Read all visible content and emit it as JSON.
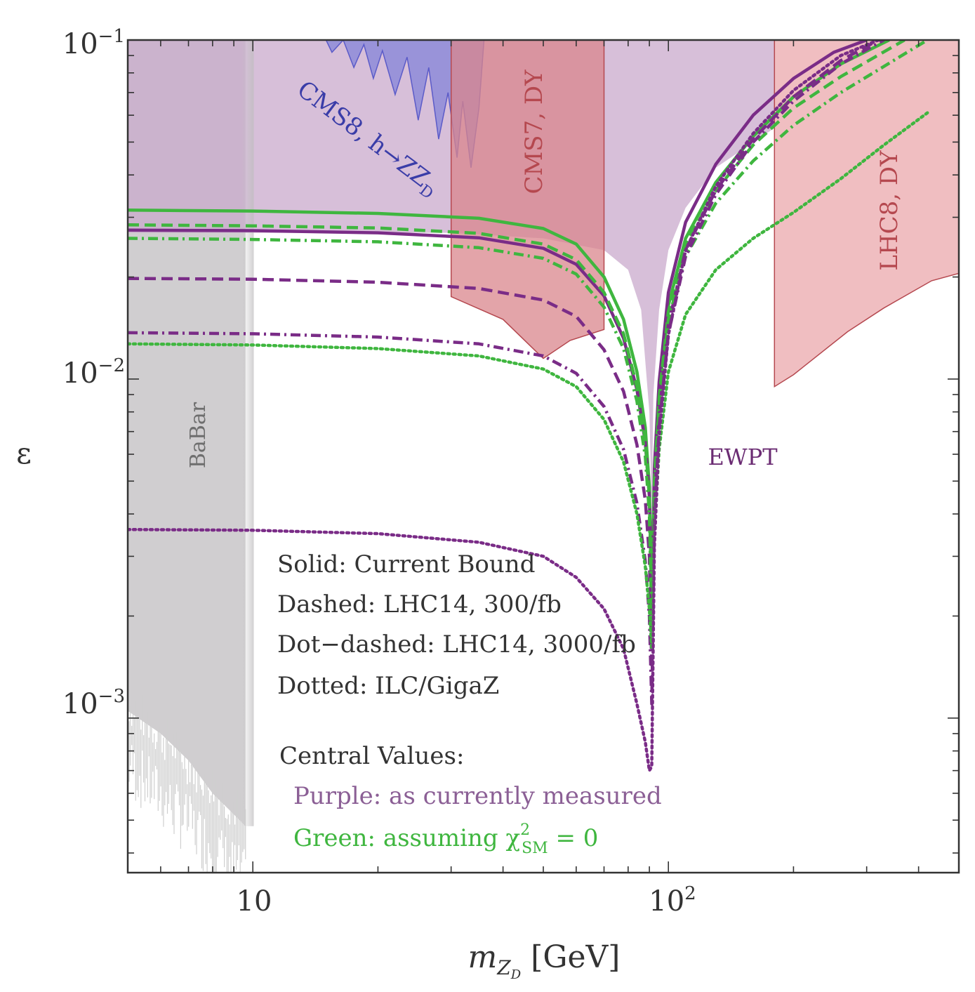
{
  "chart_data": {
    "type": "line",
    "title": "",
    "xlabel_main": "m",
    "xlabel_sub": "Z",
    "xlabel_subsub": "D",
    "xlabel_unit": "[GeV]",
    "ylabel": "ε",
    "xscale": "log",
    "yscale": "log",
    "xlim": [
      5.0,
      500.0
    ],
    "ylim": [
      0.00035,
      0.1
    ],
    "x_ticks": [
      {
        "value": 10,
        "label": "10",
        "sup": ""
      },
      {
        "value": 100,
        "label": "10",
        "sup": "2"
      }
    ],
    "y_ticks": [
      {
        "value": 0.1,
        "label": "10",
        "sup": "−1"
      },
      {
        "value": 0.01,
        "label": "10",
        "sup": "−2"
      },
      {
        "value": 0.001,
        "label": "10",
        "sup": "−3"
      }
    ],
    "regions": [
      {
        "name": "BaBar",
        "label": "BaBar",
        "color": "#c8c6c8",
        "points": [
          [
            5,
            0.1
          ],
          [
            9.6,
            0.1
          ],
          [
            9.6,
            0.00048
          ],
          [
            9.0,
            0.00052
          ],
          [
            8.0,
            0.0006
          ],
          [
            7.0,
            0.00075
          ],
          [
            6.0,
            0.0009
          ],
          [
            5.0,
            0.00105
          ]
        ]
      },
      {
        "name": "EWPT",
        "label": "EWPT",
        "color": "#c9a9cc",
        "points": [
          [
            5,
            0.1
          ],
          [
            180,
            0.1
          ],
          [
            180,
            0.055
          ],
          [
            130,
            0.042
          ],
          [
            110,
            0.032
          ],
          [
            100,
            0.024
          ],
          [
            95,
            0.016
          ],
          [
            92,
            0.009
          ],
          [
            91.2,
            0.004
          ],
          [
            90,
            0.008
          ],
          [
            86,
            0.016
          ],
          [
            80,
            0.021
          ],
          [
            70,
            0.024
          ],
          [
            50,
            0.026
          ],
          [
            30,
            0.027
          ],
          [
            20,
            0.027
          ],
          [
            5,
            0.027
          ]
        ]
      },
      {
        "name": "CMS8, h→ZZ_D",
        "label": "CMS8, h→ZZ",
        "label_sub": "D",
        "color": "#8a88d8",
        "points": [
          [
            15,
            0.1
          ],
          [
            15.5,
            0.092
          ],
          [
            16.5,
            0.1
          ],
          [
            17.5,
            0.083
          ],
          [
            18.5,
            0.097
          ],
          [
            19.5,
            0.077
          ],
          [
            20.5,
            0.093
          ],
          [
            22,
            0.069
          ],
          [
            23.5,
            0.089
          ],
          [
            25,
            0.058
          ],
          [
            26.5,
            0.083
          ],
          [
            28,
            0.051
          ],
          [
            29.5,
            0.07
          ],
          [
            31,
            0.045
          ],
          [
            32,
            0.066
          ],
          [
            33.5,
            0.042
          ],
          [
            35,
            0.063
          ],
          [
            36,
            0.1
          ]
        ]
      },
      {
        "name": "CMS7, DY",
        "label": "CMS7, DY",
        "color": "#d9868c",
        "points": [
          [
            30,
            0.1
          ],
          [
            70,
            0.1
          ],
          [
            70,
            0.014
          ],
          [
            58,
            0.013
          ],
          [
            50,
            0.0115
          ],
          [
            40,
            0.015
          ],
          [
            30,
            0.0175
          ]
        ]
      },
      {
        "name": "LHC8, DY",
        "label": "LHC8, DY",
        "color": "#e9a3a6",
        "points": [
          [
            180,
            0.1
          ],
          [
            500,
            0.1
          ],
          [
            500,
            0.0205
          ],
          [
            430,
            0.0195
          ],
          [
            330,
            0.0162
          ],
          [
            270,
            0.0138
          ],
          [
            200,
            0.0103
          ],
          [
            180,
            0.0095
          ]
        ]
      }
    ],
    "series": [
      {
        "name": "Solid: Current Bound (green)",
        "color": "#3fb63f",
        "style": "solid",
        "x": [
          5,
          10,
          20,
          35,
          50,
          60,
          70,
          78,
          84,
          88,
          90,
          91.2,
          92.5,
          95,
          100,
          110,
          130,
          160,
          200,
          260,
          340
        ],
        "y": [
          0.0315,
          0.0313,
          0.0308,
          0.0298,
          0.0278,
          0.025,
          0.02,
          0.015,
          0.0105,
          0.0072,
          0.0048,
          0.0021,
          0.0052,
          0.0092,
          0.0165,
          0.026,
          0.038,
          0.052,
          0.068,
          0.085,
          0.1
        ]
      },
      {
        "name": "Solid: Current Bound (purple)",
        "color": "#7a2c87",
        "style": "solid",
        "x": [
          5,
          10,
          20,
          35,
          50,
          60,
          70,
          78,
          84,
          88,
          90,
          91.2,
          92.5,
          95,
          100,
          110,
          130,
          160,
          200,
          250,
          300
        ],
        "y": [
          0.0275,
          0.0274,
          0.027,
          0.0261,
          0.0243,
          0.0218,
          0.0176,
          0.0132,
          0.0093,
          0.0065,
          0.0045,
          0.0022,
          0.0055,
          0.0098,
          0.018,
          0.029,
          0.043,
          0.06,
          0.077,
          0.092,
          0.1
        ]
      },
      {
        "name": "Dashed: LHC14, 300/fb (green)",
        "color": "#3fb63f",
        "style": "dashed",
        "x": [
          5,
          10,
          20,
          35,
          50,
          60,
          70,
          78,
          84,
          88,
          90,
          91.2,
          92.5,
          95,
          100,
          110,
          130,
          160,
          200,
          260,
          370
        ],
        "y": [
          0.0285,
          0.0283,
          0.0279,
          0.0269,
          0.025,
          0.0225,
          0.018,
          0.0136,
          0.0095,
          0.0066,
          0.0045,
          0.0021,
          0.005,
          0.0088,
          0.0158,
          0.025,
          0.036,
          0.049,
          0.063,
          0.078,
          0.1
        ]
      },
      {
        "name": "Dashed: LHC14, 300/fb (purple)",
        "color": "#7a2c87",
        "style": "dashed",
        "x": [
          5,
          10,
          20,
          35,
          50,
          60,
          70,
          78,
          84,
          88,
          90,
          91.2,
          92.5,
          95,
          100,
          110,
          130,
          160,
          200,
          260,
          320
        ],
        "y": [
          0.0198,
          0.0197,
          0.0193,
          0.0185,
          0.0171,
          0.0153,
          0.0122,
          0.0092,
          0.0064,
          0.0044,
          0.003,
          0.0014,
          0.0042,
          0.0078,
          0.0145,
          0.024,
          0.036,
          0.051,
          0.068,
          0.087,
          0.1
        ]
      },
      {
        "name": "Dot-dashed: LHC14, 3000/fb (green)",
        "color": "#3fb63f",
        "style": "dotdash",
        "x": [
          5,
          10,
          20,
          35,
          50,
          60,
          70,
          78,
          84,
          88,
          90,
          91.2,
          92.5,
          95,
          100,
          110,
          130,
          160,
          200,
          260,
          420
        ],
        "y": [
          0.026,
          0.0258,
          0.0254,
          0.0244,
          0.0227,
          0.0204,
          0.0163,
          0.0123,
          0.0086,
          0.0059,
          0.004,
          0.0019,
          0.0048,
          0.0085,
          0.015,
          0.023,
          0.033,
          0.044,
          0.056,
          0.07,
          0.1
        ]
      },
      {
        "name": "Dot-dashed: LHC14, 3000/fb (purple)",
        "color": "#7a2c87",
        "style": "dotdash",
        "x": [
          5,
          10,
          20,
          35,
          50,
          60,
          70,
          78,
          84,
          88,
          90,
          91.2,
          92.5,
          95,
          100,
          110,
          130,
          160,
          200,
          260,
          330
        ],
        "y": [
          0.0137,
          0.0136,
          0.0133,
          0.0127,
          0.0117,
          0.0104,
          0.0083,
          0.0062,
          0.0043,
          0.0029,
          0.002,
          0.0011,
          0.0038,
          0.0072,
          0.0136,
          0.023,
          0.035,
          0.05,
          0.066,
          0.085,
          0.1
        ]
      },
      {
        "name": "Dotted: ILC/GigaZ (green)",
        "color": "#3fb63f",
        "style": "dotted",
        "x": [
          5,
          10,
          20,
          35,
          50,
          60,
          70,
          78,
          84,
          88,
          90,
          91.2,
          92.5,
          95,
          100,
          110,
          130,
          160,
          200,
          260,
          330,
          420
        ],
        "y": [
          0.0127,
          0.0126,
          0.0123,
          0.0117,
          0.0107,
          0.0095,
          0.0076,
          0.0057,
          0.004,
          0.0028,
          0.0021,
          0.0016,
          0.0035,
          0.0062,
          0.0105,
          0.0155,
          0.021,
          0.026,
          0.031,
          0.039,
          0.049,
          0.061
        ]
      },
      {
        "name": "Dotted: ILC/GigaZ (purple)",
        "color": "#7a2c87",
        "style": "dotted",
        "x": [
          5,
          10,
          20,
          35,
          50,
          60,
          70,
          78,
          84,
          88,
          90,
          91.2,
          92.5,
          95,
          100,
          110,
          130,
          160,
          200,
          260,
          320
        ],
        "y": [
          0.0036,
          0.00358,
          0.0035,
          0.0033,
          0.003,
          0.0026,
          0.0021,
          0.0016,
          0.0011,
          0.00085,
          0.0007,
          0.00072,
          0.0032,
          0.0068,
          0.0135,
          0.024,
          0.037,
          0.053,
          0.071,
          0.09,
          0.1
        ]
      }
    ],
    "annotations": {
      "babar": "BaBar",
      "ewpt": "EWPT",
      "cms8_main": "CMS8, h→ZZ",
      "cms8_sub": "D",
      "cms7": "CMS7, DY",
      "lhc8": "LHC8, DY"
    },
    "legend": {
      "placement": "bottom-left inside",
      "solid": "Solid: Current Bound",
      "dashed": "Dashed: LHC14, 300/fb",
      "dotdashed": "Dot−dashed: LHC14, 3000/fb",
      "dotted": "Dotted: ILC/GigaZ",
      "central_heading": "Central Values:",
      "purple_note": "Purple: as currently measured",
      "green_note_prefix": "Green: assuming χ",
      "green_note_sup": "2",
      "green_note_sub": "SM",
      "green_note_suffix": " = 0"
    },
    "colors": {
      "purple_text": "#8b5f95",
      "green_text": "#3fb63f",
      "dark_text": "#333333",
      "red_text": "#b5484f",
      "blue_text": "#3a3da8",
      "ewpt_text": "#6b2c73"
    }
  }
}
